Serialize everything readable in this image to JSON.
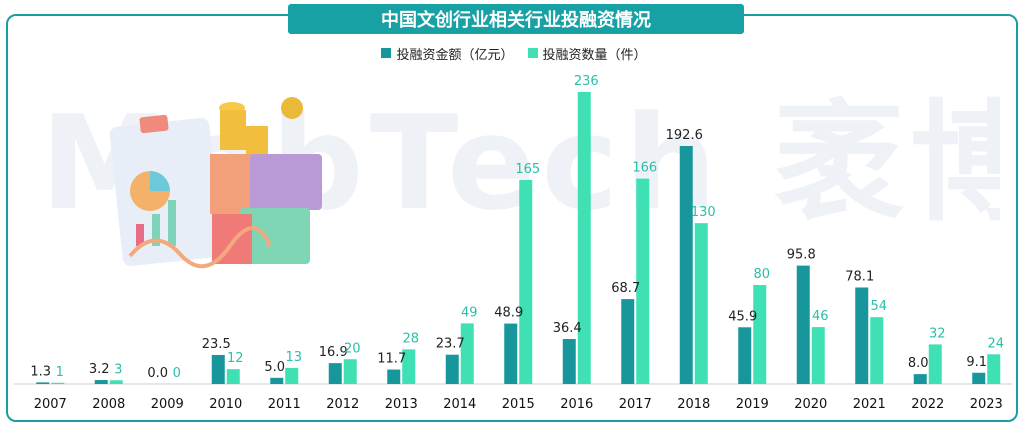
{
  "title": "中国文创行业相关行业投融资情况",
  "watermark": "MobTech 袤博",
  "colors": {
    "amount": "#17979b",
    "count": "#3fe0b4",
    "title_bg": "#18a1a4",
    "amount_label": "#222222",
    "count_label": "#2bbfa8"
  },
  "chart_data": {
    "type": "bar",
    "title": "中国文创行业相关行业投融资情况",
    "xlabel": "",
    "ylabel": "",
    "categories": [
      "2007",
      "2008",
      "2009",
      "2010",
      "2011",
      "2012",
      "2013",
      "2014",
      "2015",
      "2016",
      "2017",
      "2018",
      "2019",
      "2020",
      "2021",
      "2022",
      "2023"
    ],
    "series": [
      {
        "name": "投融资金额（亿元）",
        "values": [
          1.3,
          3.2,
          0.0,
          23.5,
          5.0,
          16.9,
          11.7,
          23.7,
          48.9,
          36.4,
          68.7,
          192.6,
          45.9,
          95.8,
          78.1,
          8.0,
          9.1
        ],
        "labels": [
          "1.3",
          "3.2",
          "0.0",
          "23.5",
          "5.0",
          "16.9",
          "11.7",
          "23.7",
          "48.9",
          "36.4",
          "68.7",
          "192.6",
          "45.9",
          "95.8",
          "78.1",
          "8.0",
          "9.1"
        ]
      },
      {
        "name": "投融资数量（件）",
        "values": [
          1,
          3,
          0,
          12,
          13,
          20,
          28,
          49,
          165,
          236,
          166,
          130,
          80,
          46,
          54,
          32,
          24
        ],
        "labels": [
          "1",
          "3",
          "0",
          "12",
          "13",
          "20",
          "28",
          "49",
          "165",
          "236",
          "166",
          "130",
          "80",
          "46",
          "54",
          "32",
          "24"
        ]
      }
    ],
    "grid": false,
    "legend_position": "top-center"
  }
}
